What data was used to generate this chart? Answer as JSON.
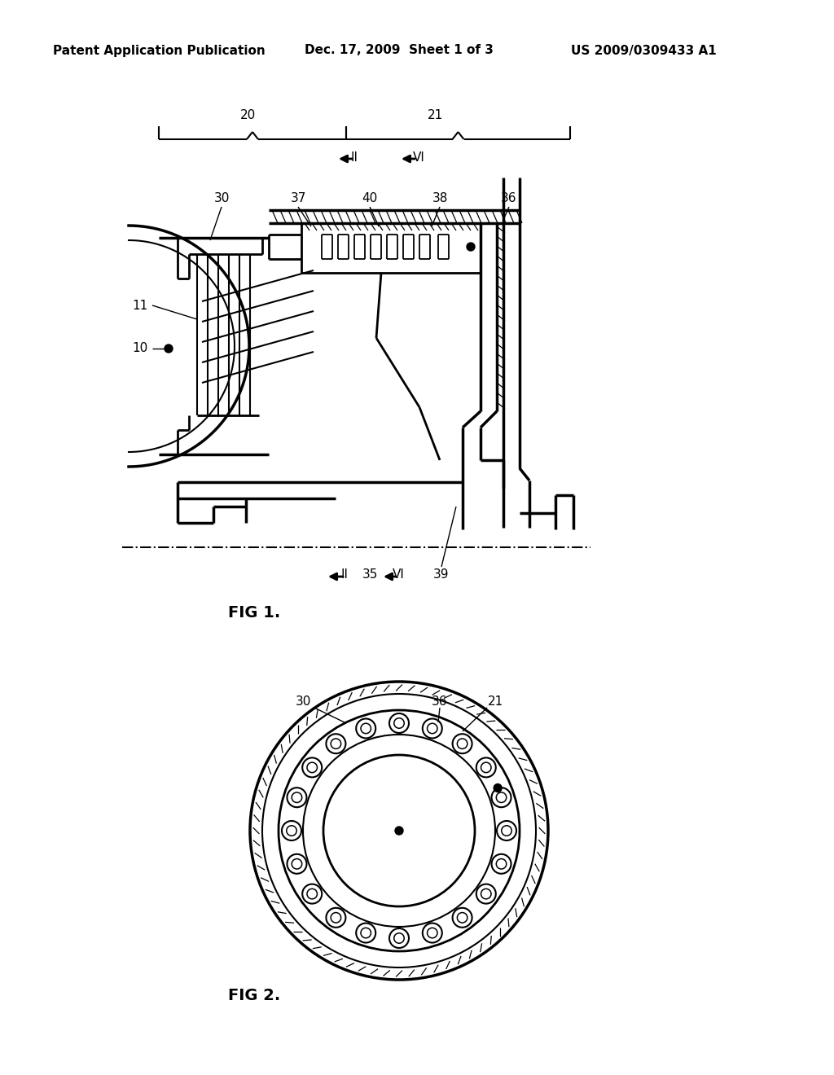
{
  "background_color": "#ffffff",
  "header_left": "Patent Application Publication",
  "header_center": "Dec. 17, 2009  Sheet 1 of 3",
  "header_right": "US 2009/0309433 A1",
  "fig1_label": "FIG 1.",
  "fig2_label": "FIG 2."
}
